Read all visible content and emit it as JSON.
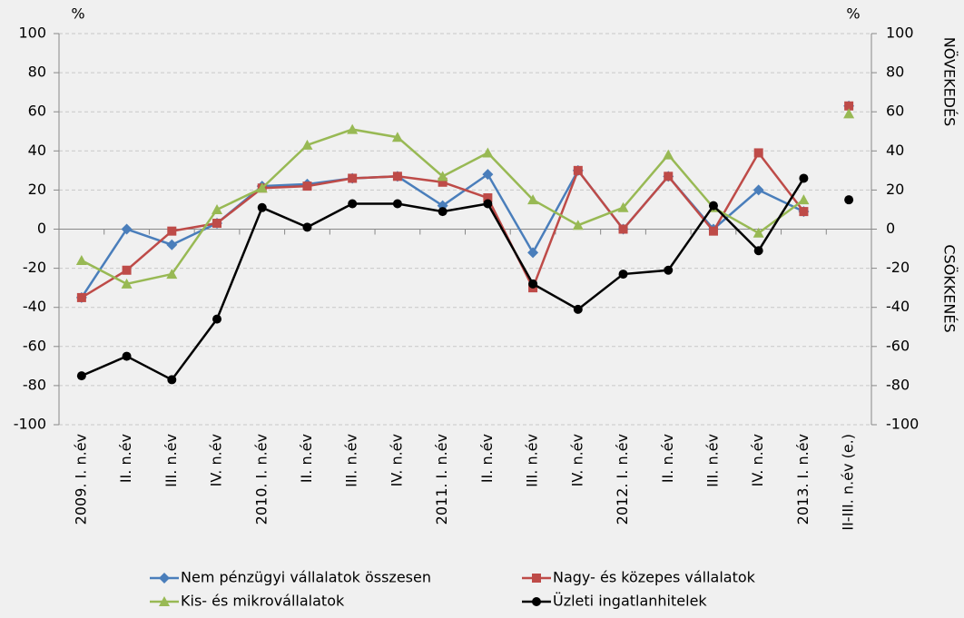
{
  "chart_data": {
    "type": "line",
    "y_unit": "%",
    "y2_unit": "%",
    "right_labels": [
      "NÖVEKEDÉS",
      "CSÖKKENÉS"
    ],
    "categories": [
      "2009. I. n.év",
      "II. n.év",
      "III. n.év",
      "IV. n.év",
      "2010. I. n.év",
      "II. n.év",
      "III. n.év",
      "IV. n.év",
      "2011. I. n.év",
      "II. n.év",
      "III. n.év",
      "IV. n.év",
      "2012. I. n.év",
      "II. n.év",
      "III. n.év",
      "IV. n.év",
      "2013. I. n.év",
      "II-III. n.év (e.)"
    ],
    "series": [
      {
        "name": "Nem pénzügyi vállalatok összesen",
        "color": "#4a7ebb",
        "marker": "diamond",
        "values": [
          -35,
          0,
          -8,
          3,
          22,
          23,
          26,
          27,
          12,
          28,
          -12,
          30,
          0,
          27,
          0,
          20,
          9,
          63
        ]
      },
      {
        "name": "Nagy- és közepes vállalatok",
        "color": "#be4b48",
        "marker": "square",
        "values": [
          -35,
          -21,
          -1,
          3,
          21,
          22,
          26,
          27,
          24,
          16,
          -30,
          30,
          0,
          27,
          -1,
          39,
          9,
          63
        ]
      },
      {
        "name": "Kis- és mikrovállalatok",
        "color": "#98b954",
        "marker": "triangle",
        "values": [
          -16,
          -28,
          -23,
          10,
          21,
          43,
          51,
          47,
          27,
          39,
          15,
          2,
          11,
          38,
          11,
          -2,
          15,
          59
        ]
      },
      {
        "name": "Üzleti ingatlanhitelek",
        "color": "#000000",
        "marker": "circle",
        "values": [
          -75,
          -65,
          -77,
          -46,
          11,
          1,
          13,
          13,
          9,
          13,
          -28,
          -41,
          -23,
          -21,
          12,
          -11,
          26,
          15
        ]
      }
    ],
    "ylim": [
      -100,
      100
    ],
    "yticks": [
      -100,
      -80,
      -60,
      -40,
      -20,
      0,
      20,
      40,
      60,
      80,
      100
    ],
    "y2lim": [
      -100,
      100
    ],
    "y2ticks": [
      -100,
      -80,
      -60,
      -40,
      -20,
      0,
      20,
      40,
      60,
      80,
      100
    ],
    "grid": true
  }
}
